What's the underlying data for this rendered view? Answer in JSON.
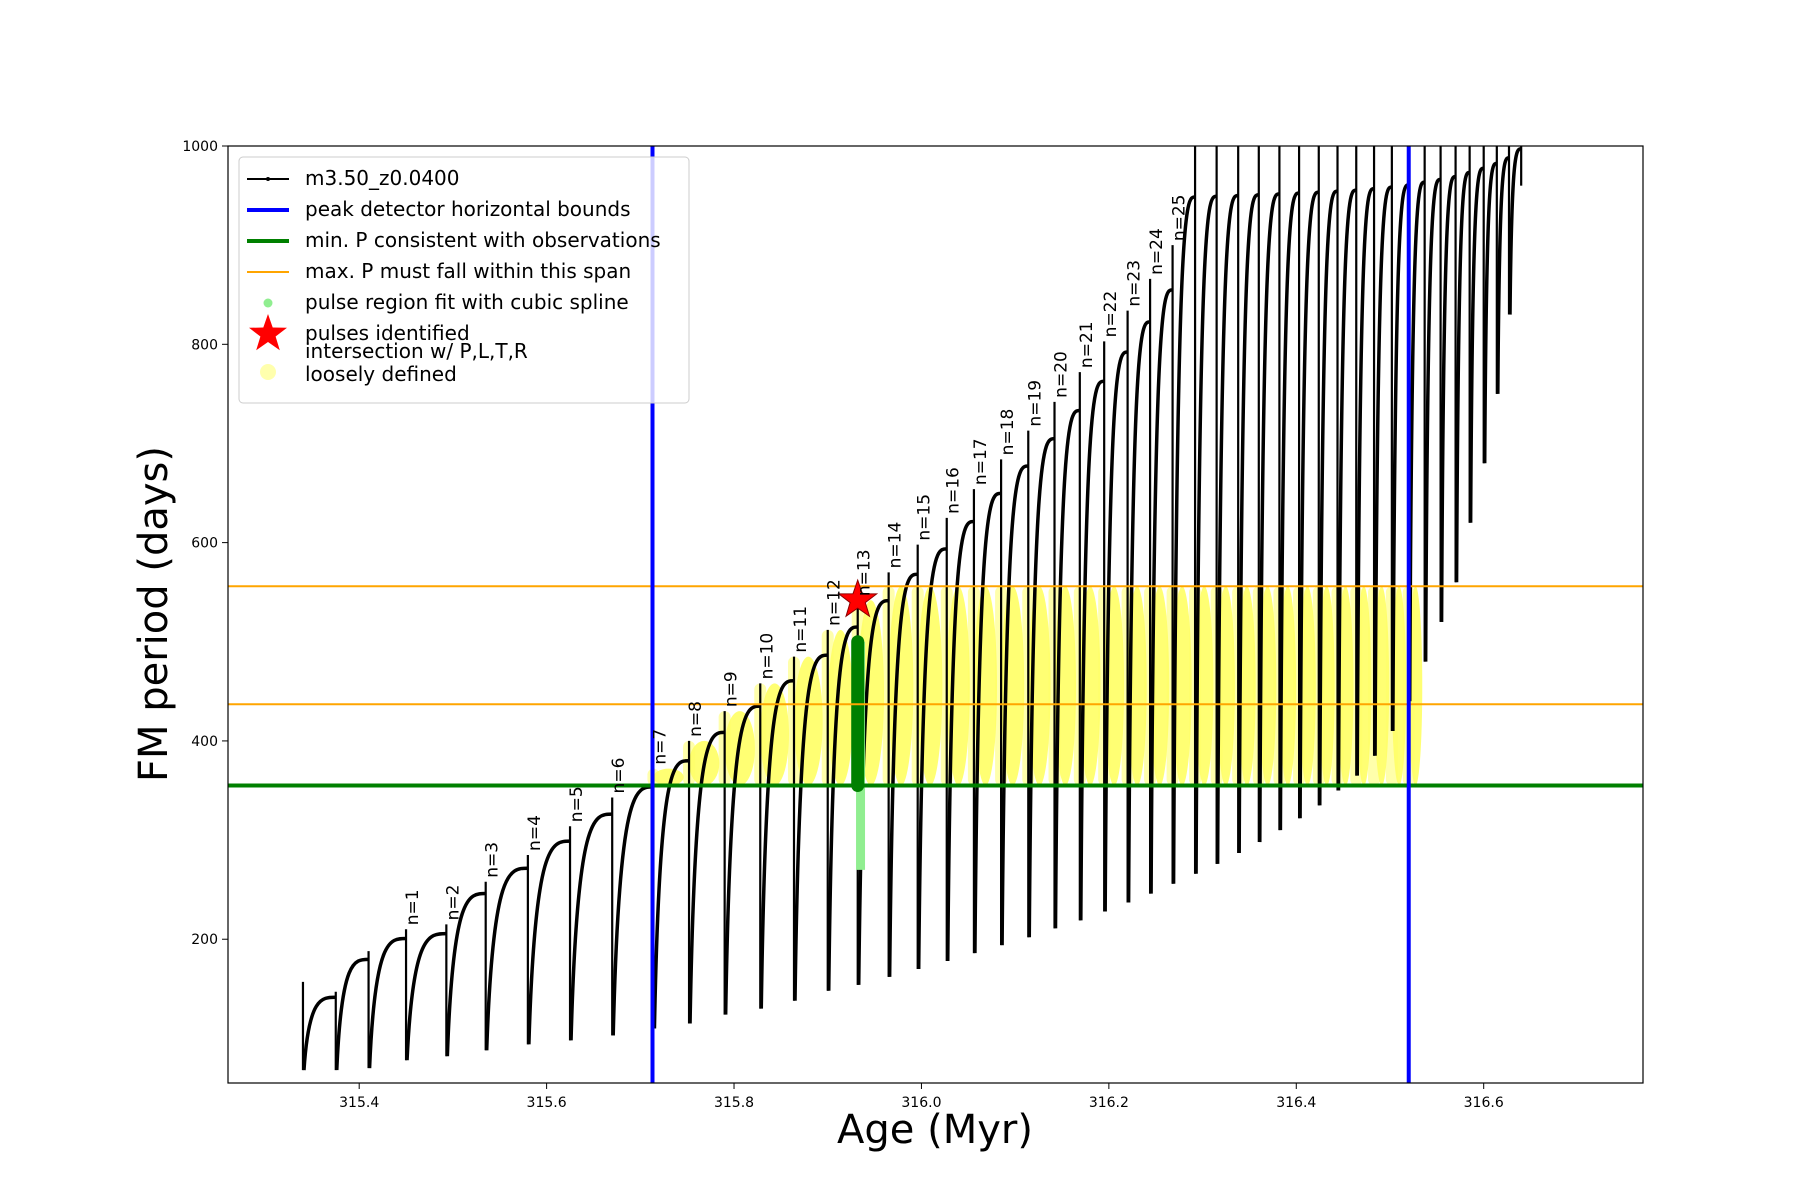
{
  "chart_data": {
    "type": "line",
    "title": "",
    "xlabel": "Age (Myr)",
    "ylabel": "FM period (days)",
    "xlim": [
      315.26,
      316.77
    ],
    "ylim": [
      55,
      1000
    ],
    "xticks": [
      315.4,
      315.6,
      315.8,
      316.0,
      316.2,
      316.4,
      316.6
    ],
    "xtick_labels": [
      "315.4",
      "315.6",
      "315.8",
      "316.0",
      "316.2",
      "316.4",
      "316.6"
    ],
    "yticks": [
      200,
      400,
      600,
      800,
      1000
    ],
    "ytick_labels": [
      "200",
      "400",
      "600",
      "800",
      "1000"
    ],
    "grid": false,
    "legend_position": "top-left",
    "legend": [
      {
        "label": "m3.50_z0.0400",
        "kind": "line-marker",
        "color": "#000000"
      },
      {
        "label": "peak detector horizontal bounds",
        "kind": "line",
        "color": "#0000ff"
      },
      {
        "label": "min. P consistent with observations",
        "kind": "line",
        "color": "#008000"
      },
      {
        "label": "max. P must fall within this span",
        "kind": "line-thin",
        "color": "#ffa500"
      },
      {
        "label": "pulse region fit with cubic spline",
        "kind": "dot",
        "color": "#90ee90"
      },
      {
        "label": "pulses identified",
        "kind": "star",
        "color": "#ff0000"
      },
      {
        "label": "intersection w/ P,L,T,R\nloosely defined",
        "kind": "big-dot",
        "color": "#ffff99"
      }
    ],
    "vertical_lines": [
      {
        "name": "peak detector horizontal bounds",
        "x": 315.713,
        "color": "#0000ff"
      },
      {
        "name": "peak detector horizontal bounds",
        "x": 316.52,
        "color": "#0000ff"
      }
    ],
    "horizontal_lines": [
      {
        "name": "min. P consistent with observations",
        "y": 355,
        "color": "#008000"
      },
      {
        "name": "max. P must fall within this span",
        "y": 437,
        "color": "#ffa500"
      },
      {
        "name": "max. P must fall within this span",
        "y": 556,
        "color": "#ffa500"
      }
    ],
    "pulses": [
      {
        "label": "",
        "t": 315.34,
        "peak": 157,
        "min": 68
      },
      {
        "label": "",
        "t": 315.375,
        "peak": 147,
        "min": 68
      },
      {
        "label": "",
        "t": 315.41,
        "peak": 188,
        "min": 70
      },
      {
        "label": "n=1",
        "t": 315.45,
        "peak": 210,
        "min": 78
      },
      {
        "label": "n=2",
        "t": 315.493,
        "peak": 215,
        "min": 82
      },
      {
        "label": "n=3",
        "t": 315.535,
        "peak": 258,
        "min": 88
      },
      {
        "label": "n=4",
        "t": 315.58,
        "peak": 285,
        "min": 94
      },
      {
        "label": "n=5",
        "t": 315.625,
        "peak": 314,
        "min": 98
      },
      {
        "label": "n=6",
        "t": 315.67,
        "peak": 343,
        "min": 103
      },
      {
        "label": "n=7",
        "t": 315.714,
        "peak": 372,
        "min": 110
      },
      {
        "label": "n=8",
        "t": 315.752,
        "peak": 400,
        "min": 115
      },
      {
        "label": "n=9",
        "t": 315.79,
        "peak": 430,
        "min": 124
      },
      {
        "label": "n=10",
        "t": 315.828,
        "peak": 458,
        "min": 130
      },
      {
        "label": "n=11",
        "t": 315.864,
        "peak": 485,
        "min": 138
      },
      {
        "label": "n=12",
        "t": 315.9,
        "peak": 512,
        "min": 148
      },
      {
        "label": "n=13",
        "t": 315.932,
        "peak": 542,
        "min": 154
      },
      {
        "label": "n=14",
        "t": 315.965,
        "peak": 570,
        "min": 162
      },
      {
        "label": "n=15",
        "t": 315.996,
        "peak": 598,
        "min": 170
      },
      {
        "label": "n=16",
        "t": 316.027,
        "peak": 625,
        "min": 178
      },
      {
        "label": "n=17",
        "t": 316.056,
        "peak": 654,
        "min": 186
      },
      {
        "label": "n=18",
        "t": 316.085,
        "peak": 684,
        "min": 194
      },
      {
        "label": "n=19",
        "t": 316.114,
        "peak": 713,
        "min": 202
      },
      {
        "label": "n=20",
        "t": 316.142,
        "peak": 742,
        "min": 211
      },
      {
        "label": "n=21",
        "t": 316.169,
        "peak": 772,
        "min": 219
      },
      {
        "label": "n=22",
        "t": 316.195,
        "peak": 803,
        "min": 228
      },
      {
        "label": "n=23",
        "t": 316.22,
        "peak": 834,
        "min": 237
      },
      {
        "label": "n=24",
        "t": 316.244,
        "peak": 866,
        "min": 246
      },
      {
        "label": "n=25",
        "t": 316.268,
        "peak": 900,
        "min": 256
      },
      {
        "label": "",
        "t": 316.292,
        "peak": 1000,
        "min": 266
      },
      {
        "label": "",
        "t": 316.315,
        "peak": 1000,
        "min": 276
      },
      {
        "label": "",
        "t": 316.338,
        "peak": 1000,
        "min": 287
      },
      {
        "label": "",
        "t": 316.36,
        "peak": 1000,
        "min": 298
      },
      {
        "label": "",
        "t": 316.382,
        "peak": 1000,
        "min": 310
      },
      {
        "label": "",
        "t": 316.403,
        "peak": 1000,
        "min": 322
      },
      {
        "label": "",
        "t": 316.424,
        "peak": 1000,
        "min": 335
      },
      {
        "label": "",
        "t": 316.444,
        "peak": 1000,
        "min": 350
      },
      {
        "label": "",
        "t": 316.464,
        "peak": 1000,
        "min": 365
      },
      {
        "label": "",
        "t": 316.483,
        "peak": 1000,
        "min": 385
      },
      {
        "label": "",
        "t": 316.502,
        "peak": 1000,
        "min": 410
      },
      {
        "label": "",
        "t": 316.52,
        "peak": 1000,
        "min": 440
      },
      {
        "label": "",
        "t": 316.537,
        "peak": 1000,
        "min": 480
      },
      {
        "label": "",
        "t": 316.554,
        "peak": 1000,
        "min": 520
      },
      {
        "label": "",
        "t": 316.57,
        "peak": 1000,
        "min": 560
      },
      {
        "label": "",
        "t": 316.585,
        "peak": 1000,
        "min": 620
      },
      {
        "label": "",
        "t": 316.6,
        "peak": 1000,
        "min": 680
      },
      {
        "label": "",
        "t": 316.614,
        "peak": 1000,
        "min": 750
      },
      {
        "label": "",
        "t": 316.627,
        "peak": 1000,
        "min": 830
      },
      {
        "label": "",
        "t": 316.64,
        "peak": 1000,
        "min": 960
      }
    ],
    "pulse_spline_region": {
      "x": 315.935,
      "y_range": [
        270,
        500
      ],
      "color": "#90ee90"
    },
    "identified_pulse": {
      "x": 315.932,
      "y": 542,
      "color": "#ff0000"
    },
    "intersection_y_range": [
      355,
      556
    ],
    "highlighted_segment": {
      "x": 315.932,
      "y_range": [
        355,
        500
      ],
      "color": "#008000"
    }
  }
}
